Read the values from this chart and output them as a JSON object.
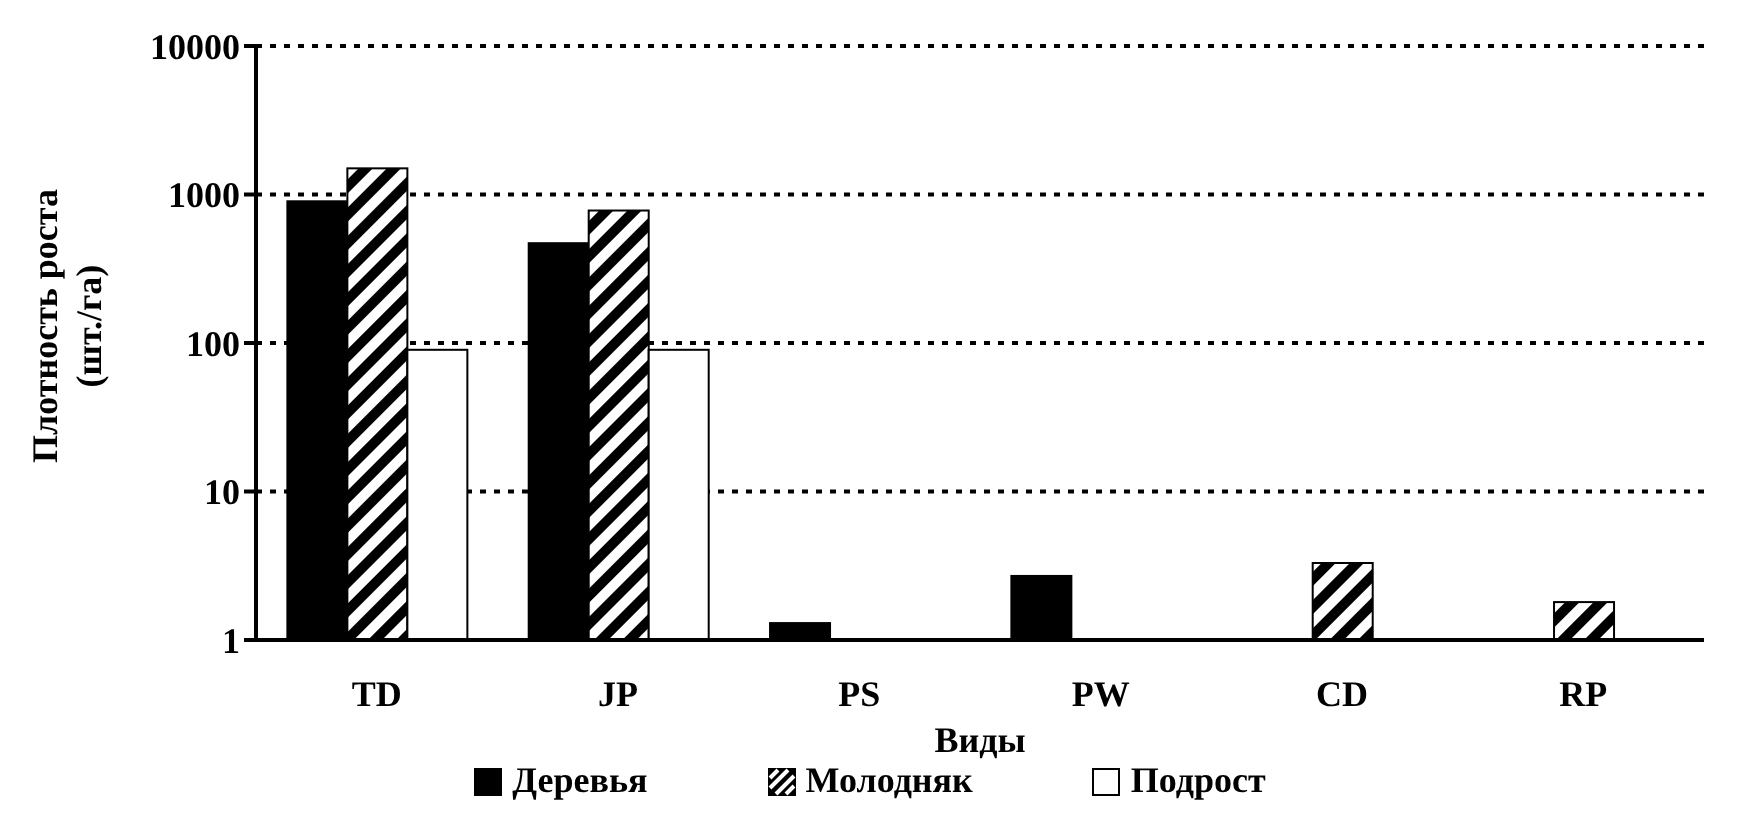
{
  "chart_data": {
    "type": "bar",
    "xlabel": "Виды",
    "ylabel": "Плотность роста\n(шт./га)",
    "categories": [
      "TD",
      "JP",
      "PS",
      "PW",
      "CD",
      "RP"
    ],
    "series": [
      {
        "name": "Деревья",
        "color": "#000000",
        "values": [
          900,
          470,
          1.3,
          2.7,
          null,
          null
        ]
      },
      {
        "name": "Молодняк",
        "color": "#000000",
        "values": [
          1500,
          780,
          null,
          null,
          3.3,
          1.8
        ]
      },
      {
        "name": "Подрост",
        "color": "#ffffff",
        "values": [
          90,
          90,
          null,
          null,
          null,
          null
        ]
      }
    ],
    "log": "y",
    "ylim": [
      1,
      10000
    ],
    "yticks": [
      1,
      10,
      100,
      1000,
      10000
    ],
    "grid": "y",
    "legend": "bottom"
  }
}
